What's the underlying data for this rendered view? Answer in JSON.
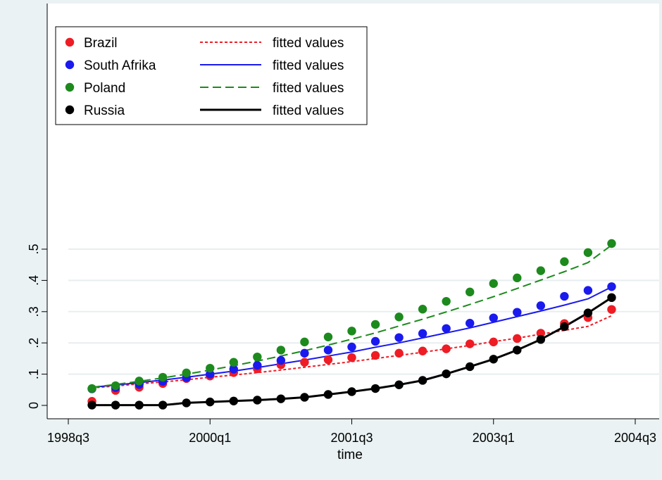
{
  "chart_data": {
    "type": "scatter",
    "xlabel": "time",
    "ylabel": "",
    "title": "",
    "xlim": [
      1998.5,
      2004.5
    ],
    "ylim": [
      0,
      0.55
    ],
    "x_ticks": [
      {
        "value": 1998.5,
        "label": "1998q3"
      },
      {
        "value": 2000.0,
        "label": "2000q1"
      },
      {
        "value": 2001.5,
        "label": "2001q3"
      },
      {
        "value": 2003.0,
        "label": "2003q1"
      },
      {
        "value": 2004.5,
        "label": "2004q3"
      }
    ],
    "y_ticks": [
      {
        "value": 0,
        "label": "0"
      },
      {
        "value": 0.1,
        "label": ".1"
      },
      {
        "value": 0.2,
        "label": ".2"
      },
      {
        "value": 0.3,
        "label": ".3"
      },
      {
        "value": 0.4,
        "label": ".4"
      },
      {
        "value": 0.5,
        "label": ".5"
      }
    ],
    "grid": true,
    "legend_position": "top-left",
    "x": [
      1998.75,
      1999.0,
      1999.25,
      1999.5,
      1999.75,
      2000.0,
      2000.25,
      2000.5,
      2000.75,
      2001.0,
      2001.25,
      2001.5,
      2001.75,
      2002.0,
      2002.25,
      2002.5,
      2002.75,
      2003.0,
      2003.25,
      2003.5,
      2003.75,
      2004.0,
      2004.25
    ],
    "series": [
      {
        "name": "Brazil",
        "color": "#ee1c25",
        "fit_name": "fitted values",
        "fit_style": "dotted",
        "values": [
          0.013,
          0.048,
          0.058,
          0.07,
          0.086,
          0.094,
          0.105,
          0.117,
          0.13,
          0.138,
          0.146,
          0.153,
          0.16,
          0.167,
          0.174,
          0.181,
          0.197,
          0.203,
          0.214,
          0.231,
          0.262,
          0.281,
          0.307
        ],
        "fitted": [
          0.056,
          0.062,
          0.069,
          0.075,
          0.082,
          0.09,
          0.097,
          0.105,
          0.113,
          0.122,
          0.131,
          0.14,
          0.15,
          0.16,
          0.17,
          0.181,
          0.192,
          0.204,
          0.215,
          0.228,
          0.24,
          0.253,
          0.287
        ]
      },
      {
        "name": "South Afrika",
        "color": "#1a1aee",
        "fit_name": "fitted values",
        "fit_style": "solid",
        "values": [
          0.053,
          0.057,
          0.067,
          0.077,
          0.089,
          0.1,
          0.116,
          0.128,
          0.144,
          0.167,
          0.177,
          0.187,
          0.205,
          0.217,
          0.23,
          0.246,
          0.263,
          0.28,
          0.298,
          0.319,
          0.349,
          0.368,
          0.38
        ],
        "fitted": [
          0.058,
          0.065,
          0.073,
          0.081,
          0.09,
          0.1,
          0.11,
          0.121,
          0.133,
          0.145,
          0.158,
          0.171,
          0.186,
          0.2,
          0.216,
          0.232,
          0.248,
          0.266,
          0.284,
          0.302,
          0.321,
          0.341,
          0.379
        ]
      },
      {
        "name": "Poland",
        "color": "#1d8a1d",
        "fit_name": "fitted values",
        "fit_style": "dashed",
        "values": [
          0.054,
          0.063,
          0.078,
          0.09,
          0.104,
          0.119,
          0.138,
          0.155,
          0.177,
          0.203,
          0.219,
          0.238,
          0.259,
          0.283,
          0.308,
          0.333,
          0.363,
          0.39,
          0.408,
          0.431,
          0.46,
          0.489,
          0.518
        ],
        "fitted": [
          0.058,
          0.067,
          0.077,
          0.088,
          0.1,
          0.113,
          0.127,
          0.142,
          0.158,
          0.175,
          0.193,
          0.212,
          0.232,
          0.254,
          0.276,
          0.299,
          0.323,
          0.348,
          0.374,
          0.401,
          0.428,
          0.457,
          0.513
        ]
      },
      {
        "name": "Russia",
        "color": "#000000",
        "fit_name": "fitted values",
        "fit_style": "solid",
        "values": [
          0.001,
          0.001,
          0.001,
          0.001,
          0.008,
          0.011,
          0.014,
          0.017,
          0.021,
          0.026,
          0.035,
          0.044,
          0.054,
          0.066,
          0.08,
          0.101,
          0.124,
          0.148,
          0.177,
          0.211,
          0.252,
          0.296,
          0.345
        ],
        "fitted": [
          0.001,
          0.001,
          0.001,
          0.001,
          0.008,
          0.011,
          0.014,
          0.017,
          0.021,
          0.026,
          0.035,
          0.044,
          0.054,
          0.066,
          0.08,
          0.101,
          0.124,
          0.148,
          0.177,
          0.211,
          0.252,
          0.296,
          0.345
        ]
      }
    ]
  }
}
